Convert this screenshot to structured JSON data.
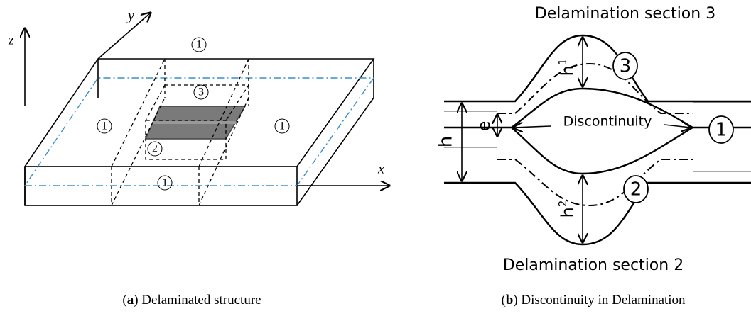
{
  "panel_a": {
    "axes": {
      "z": "z",
      "y": "y",
      "x": "x"
    },
    "regions": [
      "1",
      "3",
      "1",
      "1",
      "2",
      "1"
    ]
  },
  "panel_b": {
    "top_label": "Delamination section 3",
    "bottom_label": "Delamination section 2",
    "regions": [
      "3",
      "1",
      "2"
    ],
    "discontinuity": "Discontinuity",
    "h": "h",
    "e": "e",
    "h1": {
      "base": "h",
      "sub": "1"
    },
    "h2": {
      "base": "h",
      "sub": "2"
    }
  },
  "captions": [
    [
      "(",
      "a",
      ") Delaminated structure"
    ],
    [
      "(",
      "b",
      ") Discontinuity in Delamination"
    ]
  ]
}
